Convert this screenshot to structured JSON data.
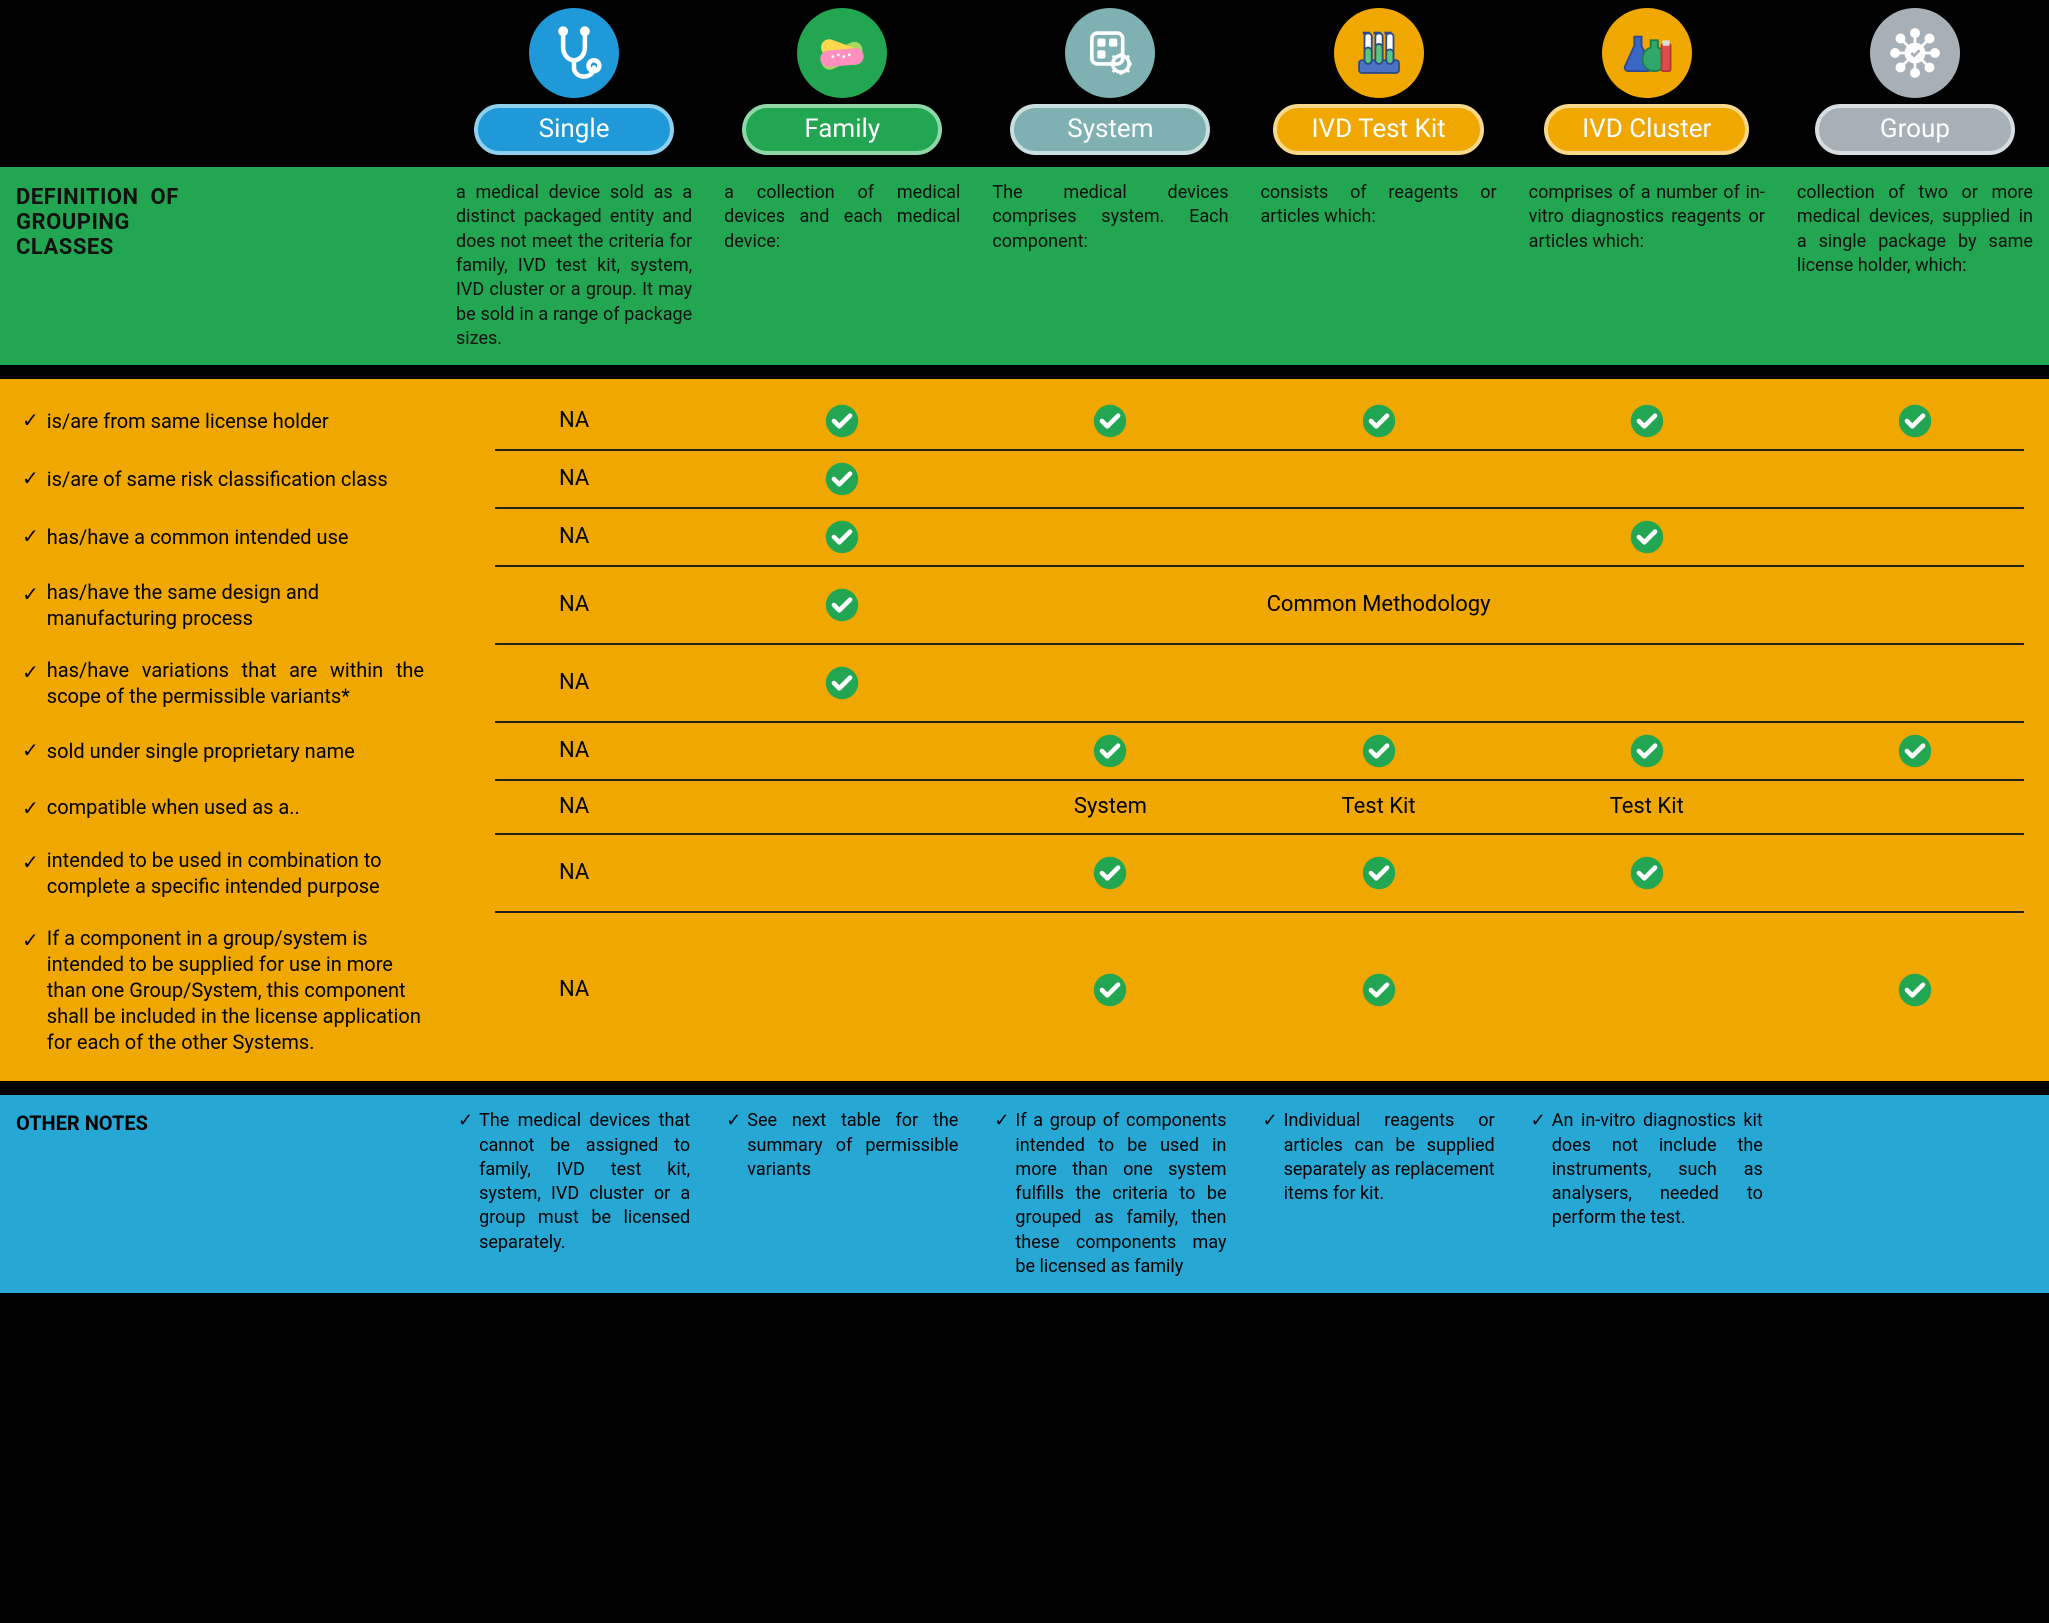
{
  "colors": {
    "black": "#000000",
    "green_bg": "#22a652",
    "yellow_bg": "#f0a800",
    "blue_bg": "#27a7d4",
    "tick_green": "#22a652",
    "tick_white": "#ffffff"
  },
  "columns": [
    {
      "key": "single",
      "label": "Single",
      "pill_bg": "#1f99d8",
      "pill_border": "#8fd0ee",
      "icon_bg": "#1f99d8"
    },
    {
      "key": "family",
      "label": "Family",
      "pill_bg": "#22a652",
      "pill_border": "#8fd6a8",
      "icon_bg": "#22a652"
    },
    {
      "key": "system",
      "label": "System",
      "pill_bg": "#7fb0b2",
      "pill_border": "#c9dedf",
      "icon_bg": "#7fb0b2"
    },
    {
      "key": "ivdkit",
      "label": "IVD Test Kit",
      "pill_bg": "#f0a800",
      "pill_border": "#f8d88a",
      "icon_bg": "#f0a800"
    },
    {
      "key": "ivdcluster",
      "label": "IVD Cluster",
      "pill_bg": "#f0a800",
      "pill_border": "#f8d88a",
      "icon_bg": "#f0a800"
    },
    {
      "key": "group",
      "label": "Group",
      "pill_bg": "#a7b0b6",
      "pill_border": "#d7dde1",
      "icon_bg": "#a7b0b6"
    }
  ],
  "definition_header": "DEFINITION OF GROUPING CLASSES",
  "definitions": {
    "single": "a medical device sold as a distinct packaged entity and does not meet the criteria for family, IVD test kit, system, IVD cluster or a group. It may be sold in a range of package sizes.",
    "family": "a collection of medical devices and each medical device:",
    "system": "The medical devices comprises system. Each component:",
    "ivdkit": "consists of reagents or articles which:",
    "ivdcluster": "comprises of a number of in-vitro diagnostics reagents or articles which:",
    "group": "collection of two or more medical devices, supplied in a single package by same license holder, which:"
  },
  "criteria": [
    {
      "label": "is/are  from same license holder",
      "cells": [
        "NA",
        "tick",
        "tick",
        "tick",
        "tick",
        "tick"
      ]
    },
    {
      "label": "is/are of same risk classification class",
      "cells": [
        "NA",
        "tick",
        "",
        "",
        "",
        ""
      ]
    },
    {
      "label": "has/have a common intended use",
      "cells": [
        "NA",
        "tick",
        "",
        "",
        "tick",
        ""
      ]
    },
    {
      "label": "has/have the same design and manufacturing process",
      "cells": [
        "NA",
        "tick",
        "",
        "Common Methodology",
        "",
        ""
      ],
      "span_common": true
    },
    {
      "label": "has/have variations that are within the scope of the permissible variants*",
      "justify": true,
      "cells": [
        "NA",
        "tick",
        "",
        "",
        "",
        ""
      ]
    },
    {
      "label": "sold under single proprietary name",
      "cells": [
        "NA",
        "",
        "tick",
        "tick",
        "tick",
        "tick"
      ]
    },
    {
      "label": "compatible when used as a..",
      "cells": [
        "NA",
        "",
        "System",
        "Test Kit",
        "Test Kit",
        ""
      ]
    },
    {
      "label": "intended to be used in combination to complete a specific intended purpose",
      "cells": [
        "NA",
        "",
        "tick",
        "tick",
        "tick",
        ""
      ]
    },
    {
      "label": "If a component in a group/system  is intended to be supplied for use in more than one Group/System, this component shall be included in the license application for each of the other Systems.",
      "cells": [
        "NA",
        "",
        "tick",
        "tick",
        "",
        "tick"
      ],
      "tall": true
    }
  ],
  "notes_header": "OTHER NOTES",
  "notes": {
    "single": "The medical devices that cannot be assigned to family, IVD test kit, system, IVD cluster or a group must be licensed separately.",
    "family": "See next table for the summary of permissible variants",
    "system": "If a group of components intended to be used in more than one system fulfills the criteria to be grouped as family, then these components may be licensed as family",
    "ivdkit": "Individual reagents or articles can be supplied separately as replacement items for kit.",
    "ivdcluster": "An in-vitro diagnostics kit does not include the instruments, such as analysers, needed to perform the test.",
    "group": ""
  }
}
